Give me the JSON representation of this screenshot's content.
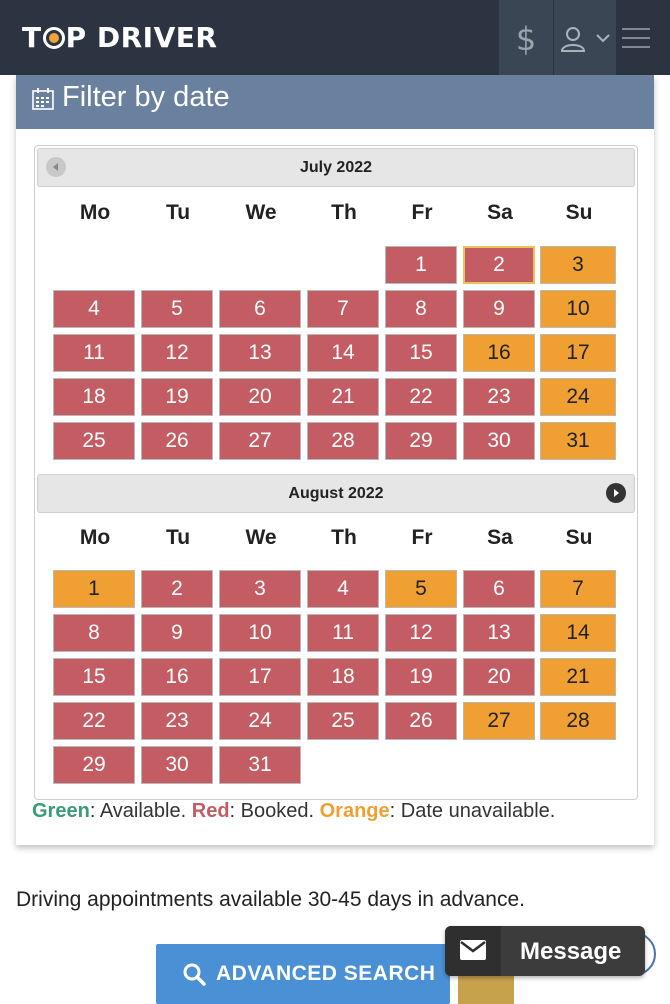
{
  "header": {
    "logo_text": "TOP DRIVER",
    "dollar_icon": "$",
    "user_icon": "user-icon",
    "menu_icon": "hamburger-menu-icon"
  },
  "filter": {
    "title": "Filter by date",
    "title_icon": "calendar-icon"
  },
  "weekdays": [
    "Mo",
    "Tu",
    "We",
    "Th",
    "Fr",
    "Sa",
    "Su"
  ],
  "months": [
    {
      "title": "July 2022",
      "first_weekday": 4,
      "days": [
        {
          "d": "1",
          "s": "booked"
        },
        {
          "d": "2",
          "s": "booked",
          "selected": true
        },
        {
          "d": "3",
          "s": "unavailable"
        },
        {
          "d": "4",
          "s": "booked"
        },
        {
          "d": "5",
          "s": "booked"
        },
        {
          "d": "6",
          "s": "booked"
        },
        {
          "d": "7",
          "s": "booked"
        },
        {
          "d": "8",
          "s": "booked"
        },
        {
          "d": "9",
          "s": "booked"
        },
        {
          "d": "10",
          "s": "unavailable"
        },
        {
          "d": "11",
          "s": "booked"
        },
        {
          "d": "12",
          "s": "booked"
        },
        {
          "d": "13",
          "s": "booked"
        },
        {
          "d": "14",
          "s": "booked"
        },
        {
          "d": "15",
          "s": "booked"
        },
        {
          "d": "16",
          "s": "unavailable"
        },
        {
          "d": "17",
          "s": "unavailable"
        },
        {
          "d": "18",
          "s": "booked"
        },
        {
          "d": "19",
          "s": "booked"
        },
        {
          "d": "20",
          "s": "booked"
        },
        {
          "d": "21",
          "s": "booked"
        },
        {
          "d": "22",
          "s": "booked"
        },
        {
          "d": "23",
          "s": "booked"
        },
        {
          "d": "24",
          "s": "unavailable"
        },
        {
          "d": "25",
          "s": "booked"
        },
        {
          "d": "26",
          "s": "booked"
        },
        {
          "d": "27",
          "s": "booked"
        },
        {
          "d": "28",
          "s": "booked"
        },
        {
          "d": "29",
          "s": "booked"
        },
        {
          "d": "30",
          "s": "booked"
        },
        {
          "d": "31",
          "s": "unavailable"
        }
      ]
    },
    {
      "title": "August 2022",
      "first_weekday": 0,
      "days": [
        {
          "d": "1",
          "s": "unavailable"
        },
        {
          "d": "2",
          "s": "booked"
        },
        {
          "d": "3",
          "s": "booked"
        },
        {
          "d": "4",
          "s": "booked"
        },
        {
          "d": "5",
          "s": "unavailable"
        },
        {
          "d": "6",
          "s": "booked"
        },
        {
          "d": "7",
          "s": "unavailable"
        },
        {
          "d": "8",
          "s": "booked"
        },
        {
          "d": "9",
          "s": "booked"
        },
        {
          "d": "10",
          "s": "booked"
        },
        {
          "d": "11",
          "s": "booked"
        },
        {
          "d": "12",
          "s": "booked"
        },
        {
          "d": "13",
          "s": "booked"
        },
        {
          "d": "14",
          "s": "unavailable"
        },
        {
          "d": "15",
          "s": "booked"
        },
        {
          "d": "16",
          "s": "booked"
        },
        {
          "d": "17",
          "s": "booked"
        },
        {
          "d": "18",
          "s": "booked"
        },
        {
          "d": "19",
          "s": "booked"
        },
        {
          "d": "20",
          "s": "booked"
        },
        {
          "d": "21",
          "s": "unavailable"
        },
        {
          "d": "22",
          "s": "booked"
        },
        {
          "d": "23",
          "s": "booked"
        },
        {
          "d": "24",
          "s": "booked"
        },
        {
          "d": "25",
          "s": "booked"
        },
        {
          "d": "26",
          "s": "booked"
        },
        {
          "d": "27",
          "s": "unavailable"
        },
        {
          "d": "28",
          "s": "unavailable"
        },
        {
          "d": "29",
          "s": "booked"
        },
        {
          "d": "30",
          "s": "booked"
        },
        {
          "d": "31",
          "s": "booked"
        }
      ]
    }
  ],
  "legend": {
    "green_label": "Green",
    "green_text": ": Available.",
    "red_label": "Red",
    "red_text": ": Booked.",
    "orange_label": "Orange",
    "orange_text": ": Date unavailable."
  },
  "note": "Driving appointments available 30-45 days in advance.",
  "advanced_search_label": "ADVANCED SEARCH",
  "message_label": "Message",
  "colors": {
    "header_bg": "#2b3440",
    "panel_head": "#6a809f",
    "booked": "#c45d63",
    "unavailable": "#f0a033",
    "available": "#3a9b77",
    "button_blue": "#4a90d4"
  }
}
